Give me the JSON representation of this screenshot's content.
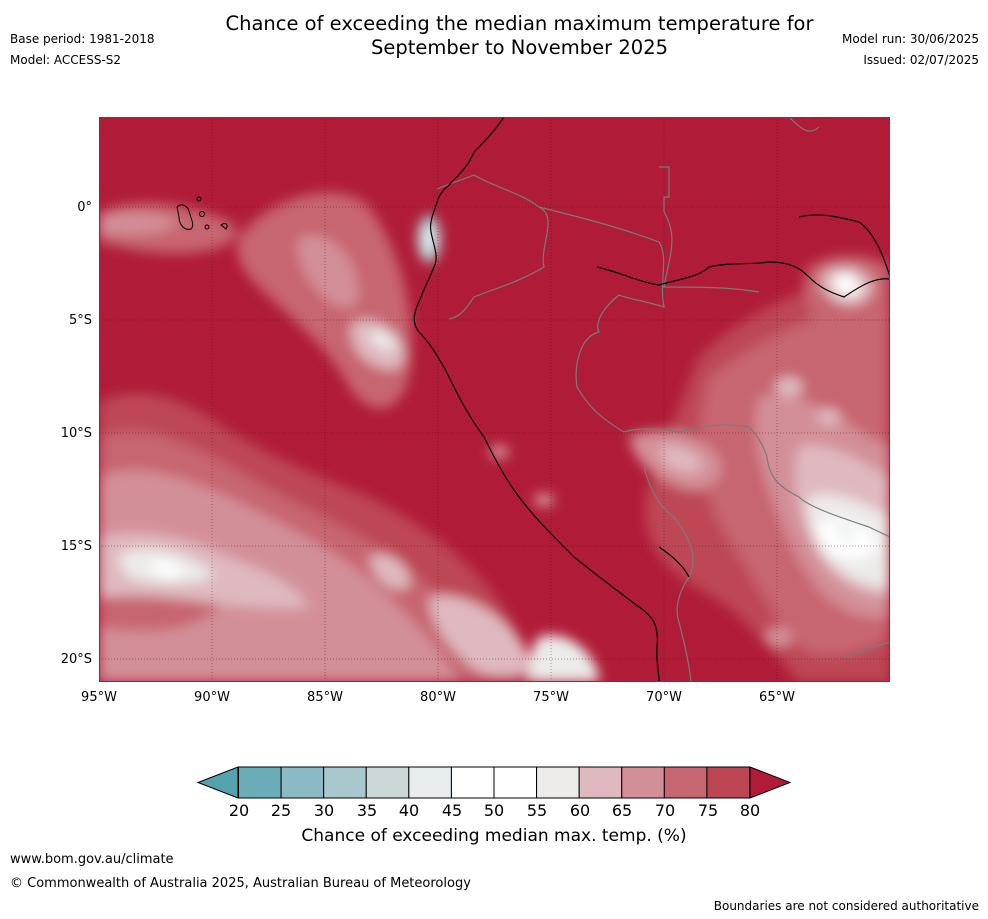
{
  "header": {
    "title_line1": "Chance of exceeding the median maximum temperature for",
    "title_line2": "September to November 2025",
    "base_period": "Base period: 1981-2018",
    "model": "Model: ACCESS-S2",
    "model_run": "Model run: 30/06/2025",
    "issued": "Issued: 02/07/2025"
  },
  "map": {
    "lat_labels": [
      "0°",
      "5°S",
      "10°S",
      "15°S",
      "20°S"
    ],
    "lon_labels": [
      "95°W",
      "90°W",
      "85°W",
      "80°W",
      "75°W",
      "70°W",
      "65°W"
    ],
    "base_color": "#b01c38"
  },
  "colorbar": {
    "title": "Chance of exceeding median max. temp. (%)",
    "labels": [
      "20",
      "25",
      "30",
      "35",
      "40",
      "45",
      "50",
      "55",
      "60",
      "65",
      "70",
      "75",
      "80"
    ],
    "colors": [
      "#6aacb8",
      "#8cbac4",
      "#a8c8cd",
      "#cbd7d9",
      "#e8eef0",
      "#ffffff",
      "#ffffff",
      "#ecebea",
      "#dfb9bf",
      "#d38f98",
      "#c76570",
      "#bd4655"
    ],
    "low_extend_color": "#53a3ae",
    "high_extend_color": "#b01c38"
  },
  "footer": {
    "url": "www.bom.gov.au/climate",
    "copyright": "© Commonwealth of Australia 2025, Australian Bureau of Meteorology",
    "disclaimer": "Boundaries are not considered authoritative"
  }
}
